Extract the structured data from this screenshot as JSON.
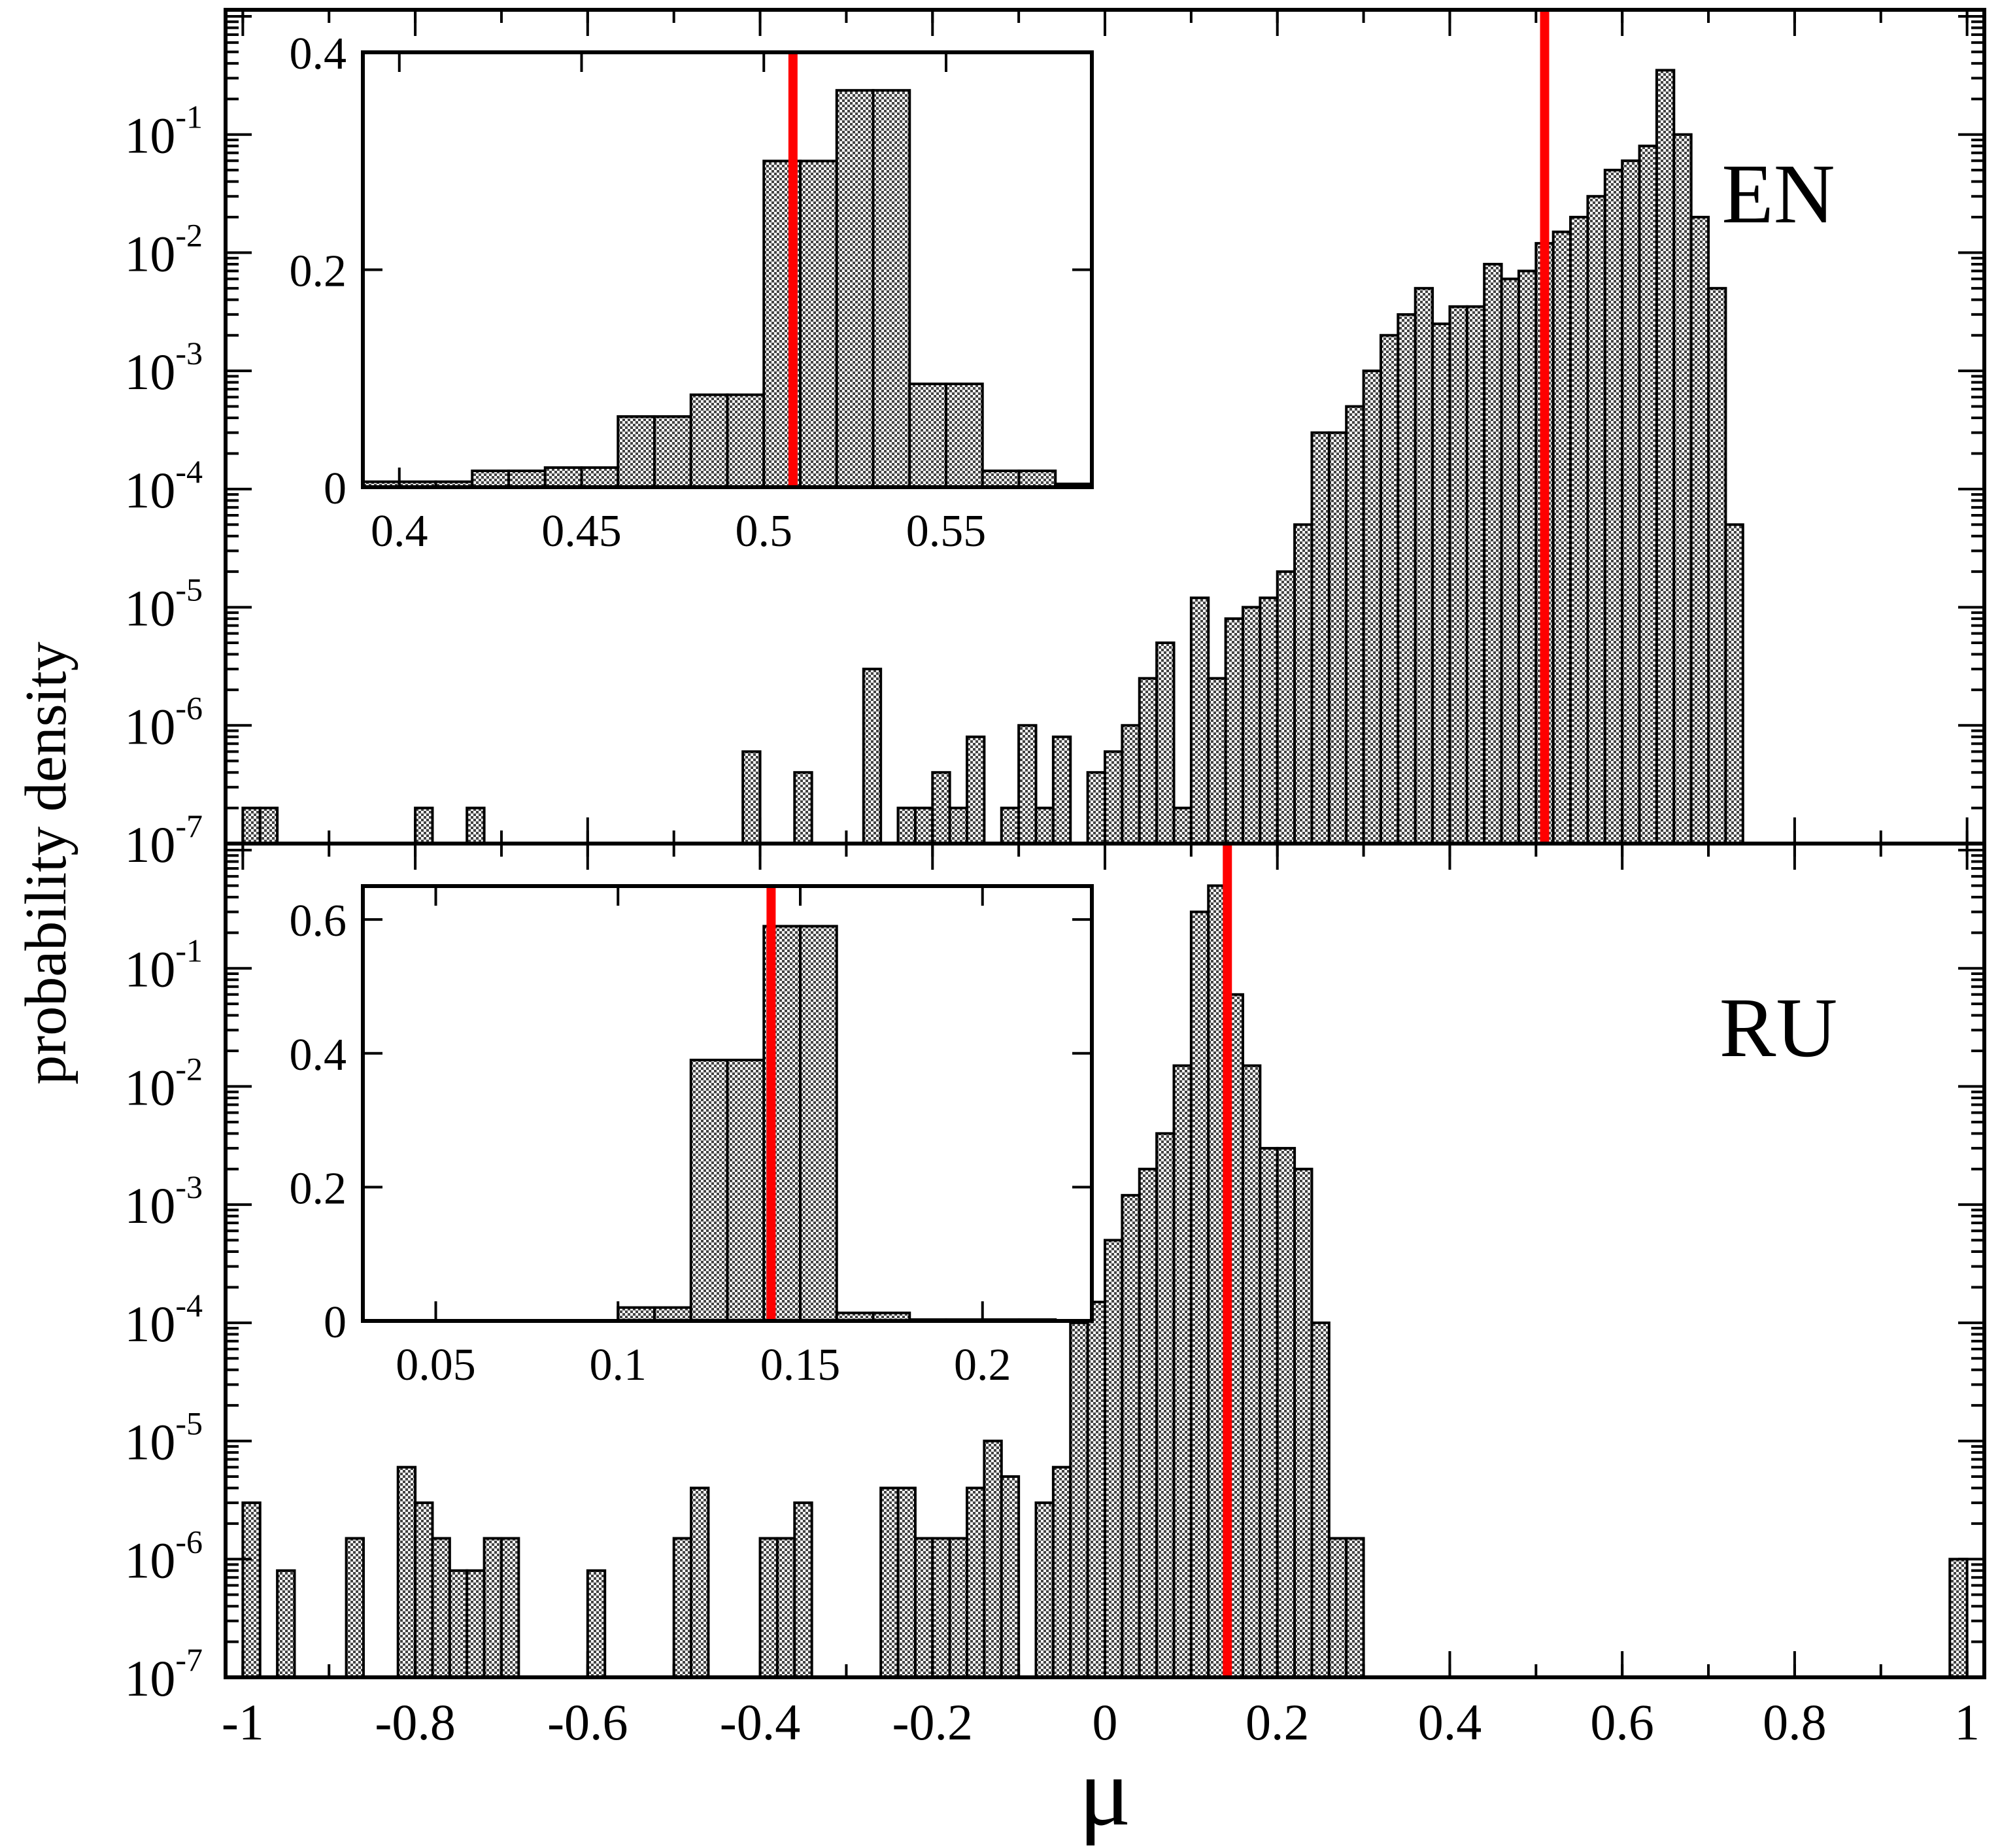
{
  "chart_data": [
    {
      "type": "bar",
      "panel": "EN",
      "label": "EN",
      "y_scale": "log",
      "ylim": [
        1e-07,
        1
      ],
      "xlim": [
        -1.02,
        1.02
      ],
      "bin_width": 0.02,
      "bins": [
        [
          -0.99,
          2e-07
        ],
        [
          -0.97,
          2e-07
        ],
        [
          -0.79,
          2e-07
        ],
        [
          -0.73,
          2e-07
        ],
        [
          -0.41,
          6e-07
        ],
        [
          -0.35,
          4e-07
        ],
        [
          -0.27,
          3e-06
        ],
        [
          -0.23,
          2e-07
        ],
        [
          -0.21,
          2e-07
        ],
        [
          -0.19,
          4e-07
        ],
        [
          -0.17,
          2e-07
        ],
        [
          -0.15,
          8e-07
        ],
        [
          -0.11,
          2e-07
        ],
        [
          -0.09,
          1e-06
        ],
        [
          -0.07,
          2e-07
        ],
        [
          -0.05,
          8e-07
        ],
        [
          -0.01,
          4e-07
        ],
        [
          0.01,
          6e-07
        ],
        [
          0.03,
          1e-06
        ],
        [
          0.05,
          2.5e-06
        ],
        [
          0.07,
          5e-06
        ],
        [
          0.09,
          2e-07
        ],
        [
          0.11,
          1.2e-05
        ],
        [
          0.13,
          2.5e-06
        ],
        [
          0.15,
          8e-06
        ],
        [
          0.17,
          1e-05
        ],
        [
          0.19,
          1.2e-05
        ],
        [
          0.21,
          2e-05
        ],
        [
          0.23,
          5e-05
        ],
        [
          0.25,
          0.0003
        ],
        [
          0.27,
          0.0003
        ],
        [
          0.29,
          0.0005
        ],
        [
          0.31,
          0.001
        ],
        [
          0.33,
          0.002
        ],
        [
          0.35,
          0.003
        ],
        [
          0.37,
          0.005
        ],
        [
          0.39,
          0.0025
        ],
        [
          0.41,
          0.0035
        ],
        [
          0.43,
          0.0035
        ],
        [
          0.45,
          0.008
        ],
        [
          0.47,
          0.006
        ],
        [
          0.49,
          0.007
        ],
        [
          0.51,
          0.012
        ],
        [
          0.53,
          0.015
        ],
        [
          0.55,
          0.02
        ],
        [
          0.57,
          0.03
        ],
        [
          0.59,
          0.05
        ],
        [
          0.61,
          0.06
        ],
        [
          0.63,
          0.08
        ],
        [
          0.65,
          0.35
        ],
        [
          0.67,
          0.1
        ],
        [
          0.69,
          0.02
        ],
        [
          0.71,
          0.005
        ],
        [
          0.73,
          5e-05
        ]
      ],
      "medianLine": 0.51,
      "inset": {
        "xlim": [
          0.39,
          0.59
        ],
        "ylim": [
          0,
          0.4
        ],
        "xticks": [
          "0.4",
          "0.45",
          "0.5",
          "0.55"
        ],
        "xtick_values": [
          0.4,
          0.45,
          0.5,
          0.55
        ],
        "yticks": [
          "0",
          "0.2",
          "0.4"
        ],
        "ytick_values": [
          0,
          0.2,
          0.4
        ],
        "bins": [
          [
            0.39,
            0.005
          ],
          [
            0.4,
            0.005
          ],
          [
            0.41,
            0.005
          ],
          [
            0.42,
            0.015
          ],
          [
            0.43,
            0.015
          ],
          [
            0.44,
            0.018
          ],
          [
            0.45,
            0.018
          ],
          [
            0.46,
            0.065
          ],
          [
            0.47,
            0.065
          ],
          [
            0.48,
            0.085
          ],
          [
            0.49,
            0.085
          ],
          [
            0.5,
            0.3
          ],
          [
            0.51,
            0.3
          ],
          [
            0.52,
            0.365
          ],
          [
            0.53,
            0.365
          ],
          [
            0.54,
            0.095
          ],
          [
            0.55,
            0.095
          ],
          [
            0.56,
            0.015
          ],
          [
            0.57,
            0.015
          ],
          [
            0.58,
            0.003
          ]
        ],
        "binWidth": 0.01,
        "medianLine": 0.508
      }
    },
    {
      "type": "bar",
      "panel": "RU",
      "label": "RU",
      "y_scale": "log",
      "ylim": [
        1e-07,
        1
      ],
      "xlim": [
        -1.02,
        1.02
      ],
      "bin_width": 0.02,
      "bins": [
        [
          -0.99,
          3e-06
        ],
        [
          -0.95,
          8e-07
        ],
        [
          -0.87,
          1.5e-06
        ],
        [
          -0.81,
          6e-06
        ],
        [
          -0.79,
          3e-06
        ],
        [
          -0.77,
          1.5e-06
        ],
        [
          -0.75,
          8e-07
        ],
        [
          -0.73,
          8e-07
        ],
        [
          -0.71,
          1.5e-06
        ],
        [
          -0.69,
          1.5e-06
        ],
        [
          -0.59,
          8e-07
        ],
        [
          -0.49,
          1.5e-06
        ],
        [
          -0.47,
          4e-06
        ],
        [
          -0.39,
          1.5e-06
        ],
        [
          -0.37,
          1.5e-06
        ],
        [
          -0.35,
          3e-06
        ],
        [
          -0.25,
          4e-06
        ],
        [
          -0.23,
          4e-06
        ],
        [
          -0.21,
          1.5e-06
        ],
        [
          -0.19,
          1.5e-06
        ],
        [
          -0.17,
          1.5e-06
        ],
        [
          -0.15,
          4e-06
        ],
        [
          -0.13,
          1e-05
        ],
        [
          -0.11,
          5e-06
        ],
        [
          -0.07,
          3e-06
        ],
        [
          -0.05,
          6e-06
        ],
        [
          -0.03,
          0.0001
        ],
        [
          -0.01,
          0.00015
        ],
        [
          0.01,
          0.0005
        ],
        [
          0.03,
          0.0012
        ],
        [
          0.05,
          0.002
        ],
        [
          0.07,
          0.004
        ],
        [
          0.09,
          0.015
        ],
        [
          0.11,
          0.3
        ],
        [
          0.13,
          0.5
        ],
        [
          0.15,
          0.06
        ],
        [
          0.17,
          0.015
        ],
        [
          0.19,
          0.003
        ],
        [
          0.21,
          0.003
        ],
        [
          0.23,
          0.002
        ],
        [
          0.25,
          0.0001
        ],
        [
          0.27,
          1.5e-06
        ],
        [
          0.29,
          1.5e-06
        ],
        [
          0.99,
          1e-06
        ]
      ],
      "medianLine": 0.142,
      "inset": {
        "xlim": [
          0.03,
          0.23
        ],
        "ylim": [
          0,
          0.65
        ],
        "xticks": [
          "0.05",
          "0.1",
          "0.15",
          "0.2"
        ],
        "xtick_values": [
          0.05,
          0.1,
          0.15,
          0.2
        ],
        "yticks": [
          "0",
          "0.2",
          "0.4",
          "0.6"
        ],
        "ytick_values": [
          0,
          0.2,
          0.4,
          0.6
        ],
        "bins": [
          [
            0.1,
            0.02
          ],
          [
            0.11,
            0.02
          ],
          [
            0.12,
            0.39
          ],
          [
            0.13,
            0.39
          ],
          [
            0.14,
            0.59
          ],
          [
            0.15,
            0.59
          ],
          [
            0.16,
            0.012
          ],
          [
            0.17,
            0.012
          ],
          [
            0.18,
            0.002
          ],
          [
            0.19,
            0.002
          ],
          [
            0.2,
            0.002
          ],
          [
            0.21,
            0.002
          ]
        ],
        "binWidth": 0.01,
        "medianLine": 0.142
      }
    }
  ],
  "axes": {
    "xlabel": "μ",
    "ylabel": "probability density",
    "xticks": [
      "-1",
      "-0.8",
      "-0.6",
      "-0.4",
      "-0.2",
      "0",
      "0.2",
      "0.4",
      "0.6",
      "0.8",
      "1"
    ],
    "xtick_values": [
      -1,
      -0.8,
      -0.6,
      -0.4,
      -0.2,
      0,
      0.2,
      0.4,
      0.6,
      0.8,
      1
    ],
    "yticks_exponents": [
      "-7",
      "-6",
      "-5",
      "-4",
      "-3",
      "-2",
      "-1"
    ]
  },
  "colors": {
    "median": "#ff0000",
    "bar_fill": "#888888"
  }
}
